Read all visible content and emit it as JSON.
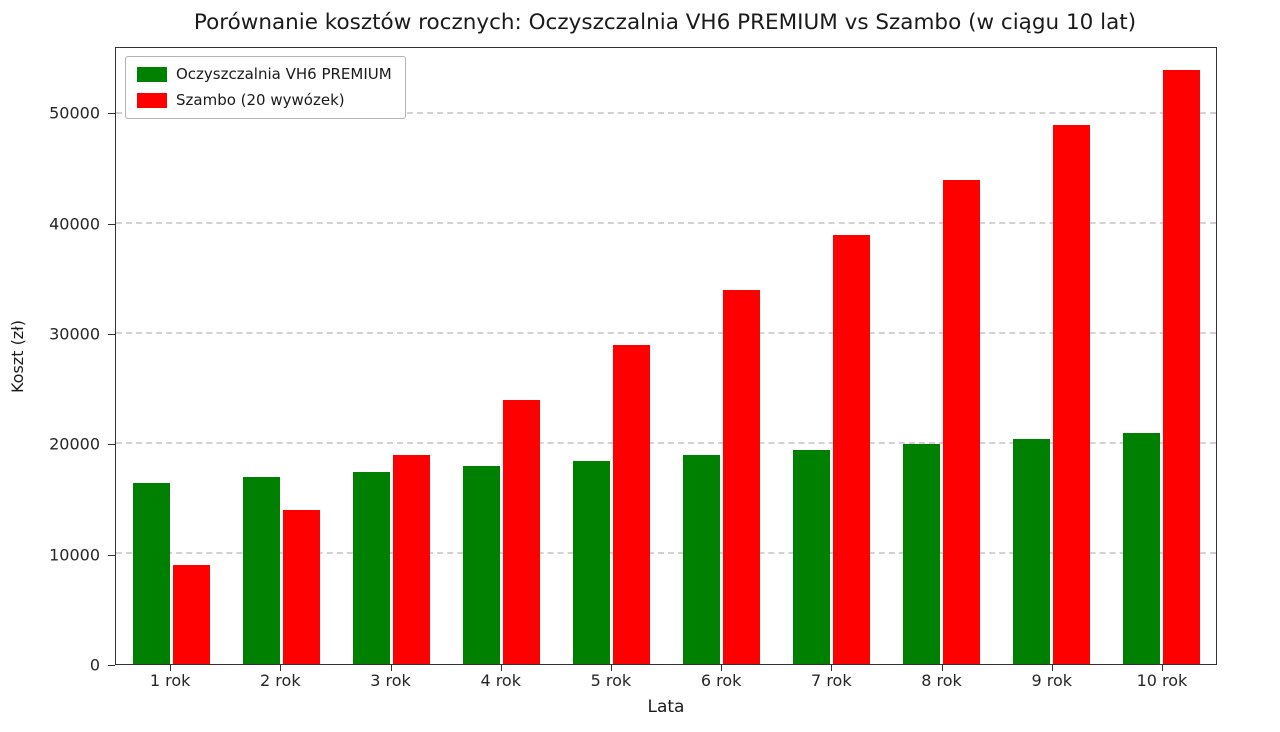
{
  "chart_data": {
    "type": "bar",
    "title": "Porównanie kosztów rocznych: Oczyszczalnia VH6 PREMIUM vs Szambo (w ciągu 10 lat)",
    "xlabel": "Lata",
    "ylabel": "Koszt (zł)",
    "categories": [
      "1 rok",
      "2 rok",
      "3 rok",
      "4 rok",
      "5 rok",
      "6 rok",
      "7 rok",
      "8 rok",
      "9 rok",
      "10 rok"
    ],
    "series": [
      {
        "name": "Oczyszczalnia VH6 PREMIUM",
        "color": "#008000",
        "values": [
          16500,
          17000,
          17500,
          18000,
          18500,
          19000,
          19500,
          20000,
          20500,
          21000
        ]
      },
      {
        "name": "Szambo (20 wywózek)",
        "color": "#ff0000",
        "values": [
          9000,
          14000,
          19000,
          24000,
          29000,
          34000,
          39000,
          44000,
          49000,
          54000
        ]
      }
    ],
    "ylim": [
      0,
      56000
    ],
    "yticks": [
      0,
      10000,
      20000,
      30000,
      40000,
      50000
    ],
    "grid": true,
    "grid_style": "dashed",
    "legend_position": "upper left"
  }
}
